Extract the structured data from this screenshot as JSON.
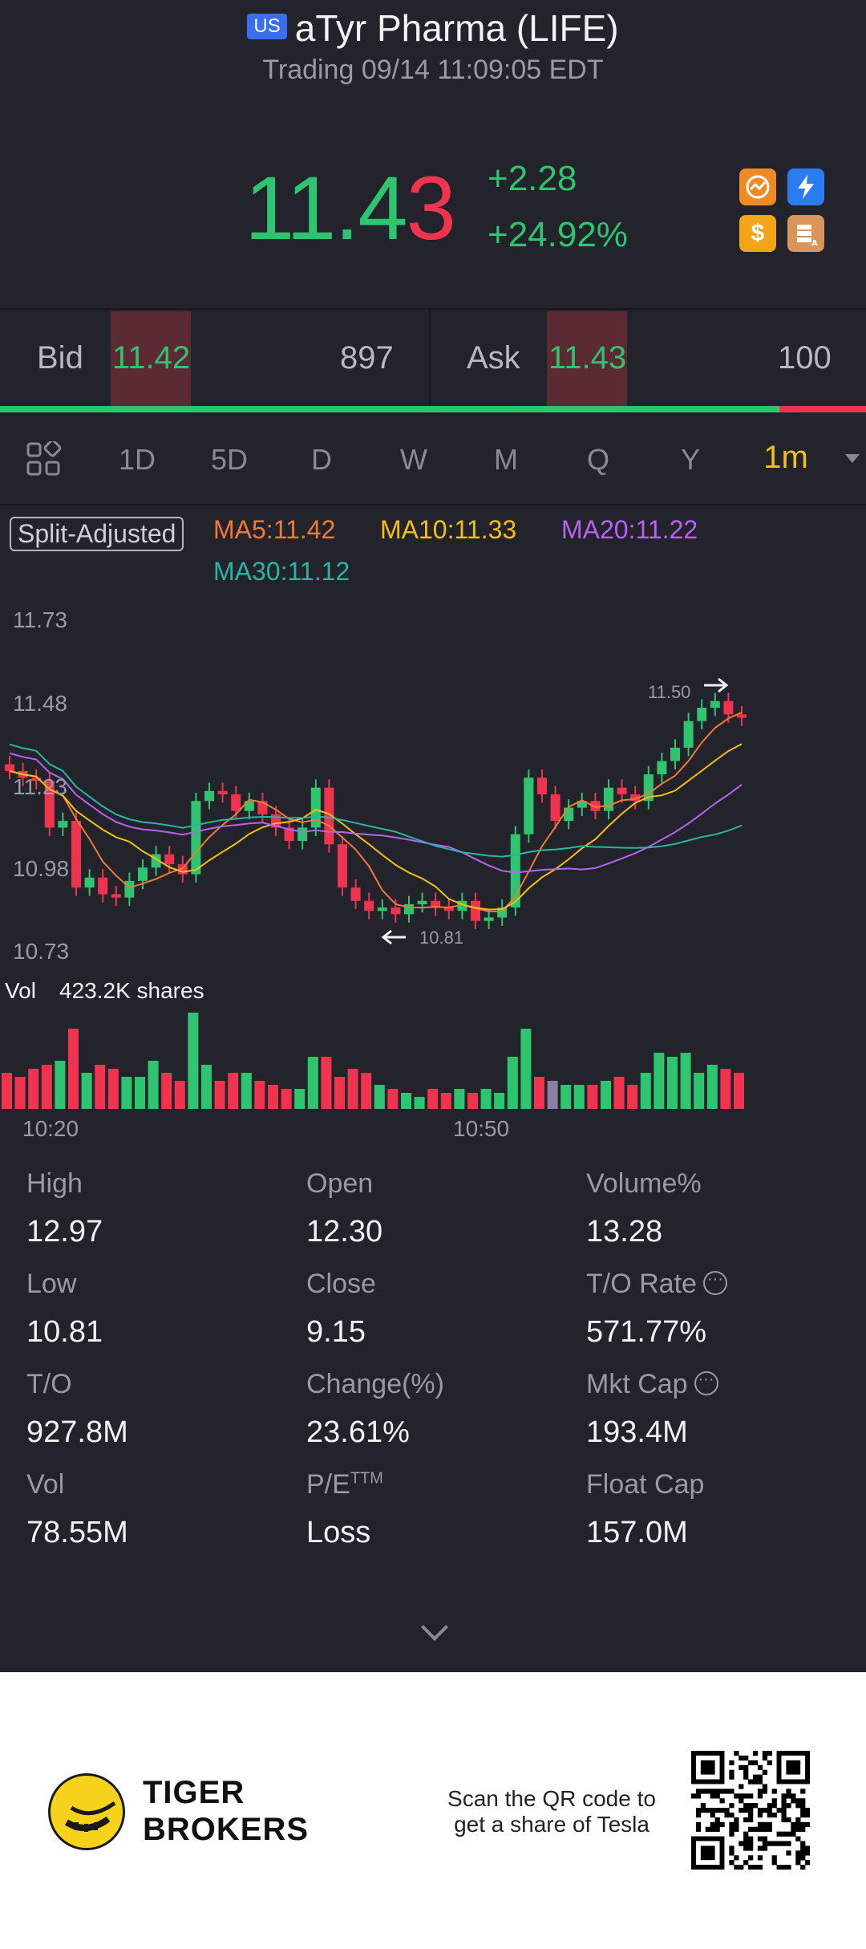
{
  "header": {
    "market_badge": "US",
    "title": "aTyr Pharma (LIFE)",
    "subtitle": "Trading 09/14 11:09:05 EDT"
  },
  "quote": {
    "price_main": "11.4",
    "price_last": "3",
    "change": "+2.28",
    "change_pct": "+24.92%",
    "colors": {
      "up": "#2fc46f",
      "down": "#f0344f"
    }
  },
  "quick_icons": [
    "trend-icon",
    "lightning-icon",
    "dollar-icon",
    "stack-icon"
  ],
  "bidask": {
    "bid_label": "Bid",
    "bid_price": "11.42",
    "bid_qty": "897",
    "ask_label": "Ask",
    "ask_price": "11.43",
    "ask_qty": "100",
    "bid_share": 0.9
  },
  "tabs": [
    "1D",
    "5D",
    "D",
    "W",
    "M",
    "Q",
    "Y",
    "1m"
  ],
  "active_tab": "1m",
  "indicators": {
    "split": "Split-Adjusted",
    "ma5": "MA5:11.42",
    "ma10": "MA10:11.33",
    "ma20": "MA20:11.22",
    "ma30": "MA30:11.12",
    "colors": {
      "ma5": "#f07a35",
      "ma10": "#f2c014",
      "ma20": "#b563f0",
      "ma30": "#29b5a4"
    }
  },
  "chart_data": {
    "type": "candlestick",
    "y_ticks": [
      "11.73",
      "11.48",
      "11.23",
      "10.98",
      "10.73"
    ],
    "ylim": [
      10.73,
      11.73
    ],
    "high_label": "11.50",
    "low_label": "10.81",
    "x_ticks": [
      "10:20",
      "10:50"
    ],
    "volume_label": "Vol",
    "volume_value": "423.2K shares",
    "closes": [
      11.27,
      11.25,
      11.24,
      11.1,
      11.12,
      10.92,
      10.95,
      10.9,
      10.89,
      10.94,
      10.98,
      11.02,
      10.99,
      10.96,
      11.18,
      11.21,
      11.2,
      11.15,
      11.18,
      11.14,
      11.1,
      11.06,
      11.1,
      11.22,
      11.05,
      10.92,
      10.88,
      10.85,
      10.86,
      10.84,
      10.87,
      10.88,
      10.86,
      10.85,
      10.88,
      10.82,
      10.83,
      10.86,
      11.08,
      11.25,
      11.2,
      11.12,
      11.16,
      11.18,
      11.15,
      11.22,
      11.2,
      11.18,
      11.26,
      11.3,
      11.34,
      11.42,
      11.46,
      11.48,
      11.44,
      11.43
    ],
    "volumes": [
      18,
      16,
      20,
      22,
      24,
      40,
      18,
      22,
      20,
      16,
      16,
      24,
      18,
      14,
      48,
      22,
      14,
      18,
      18,
      14,
      12,
      10,
      10,
      26,
      26,
      16,
      20,
      18,
      12,
      10,
      8,
      6,
      10,
      8,
      10,
      8,
      10,
      8,
      26,
      40,
      16,
      14,
      12,
      12,
      12,
      14,
      16,
      12,
      18,
      28,
      26,
      28,
      18,
      22,
      20,
      18
    ],
    "volume_colors": "mixed"
  },
  "stats": [
    {
      "label": "High",
      "value": "12.97"
    },
    {
      "label": "Open",
      "value": "12.30"
    },
    {
      "label": "Volume%",
      "value": "13.28"
    },
    {
      "label": "Low",
      "value": "10.81"
    },
    {
      "label": "Close",
      "value": "9.15"
    },
    {
      "label": "T/O Rate",
      "value": "571.77%"
    },
    {
      "label": "T/O",
      "value": "927.8M"
    },
    {
      "label": "Change(%)",
      "value": "23.61%"
    },
    {
      "label": "Mkt Cap",
      "value": "193.4M"
    },
    {
      "label": "Vol",
      "value": "78.55M"
    },
    {
      "label": "P/E",
      "value": "Loss"
    },
    {
      "label": "Float Cap",
      "value": "157.0M"
    }
  ],
  "pe_sup": "TTM",
  "footer": {
    "brand_line1": "TIGER",
    "brand_line2": "BROKERS",
    "scan_line1": "Scan the QR code to",
    "scan_line2": "get a share of Tesla"
  }
}
